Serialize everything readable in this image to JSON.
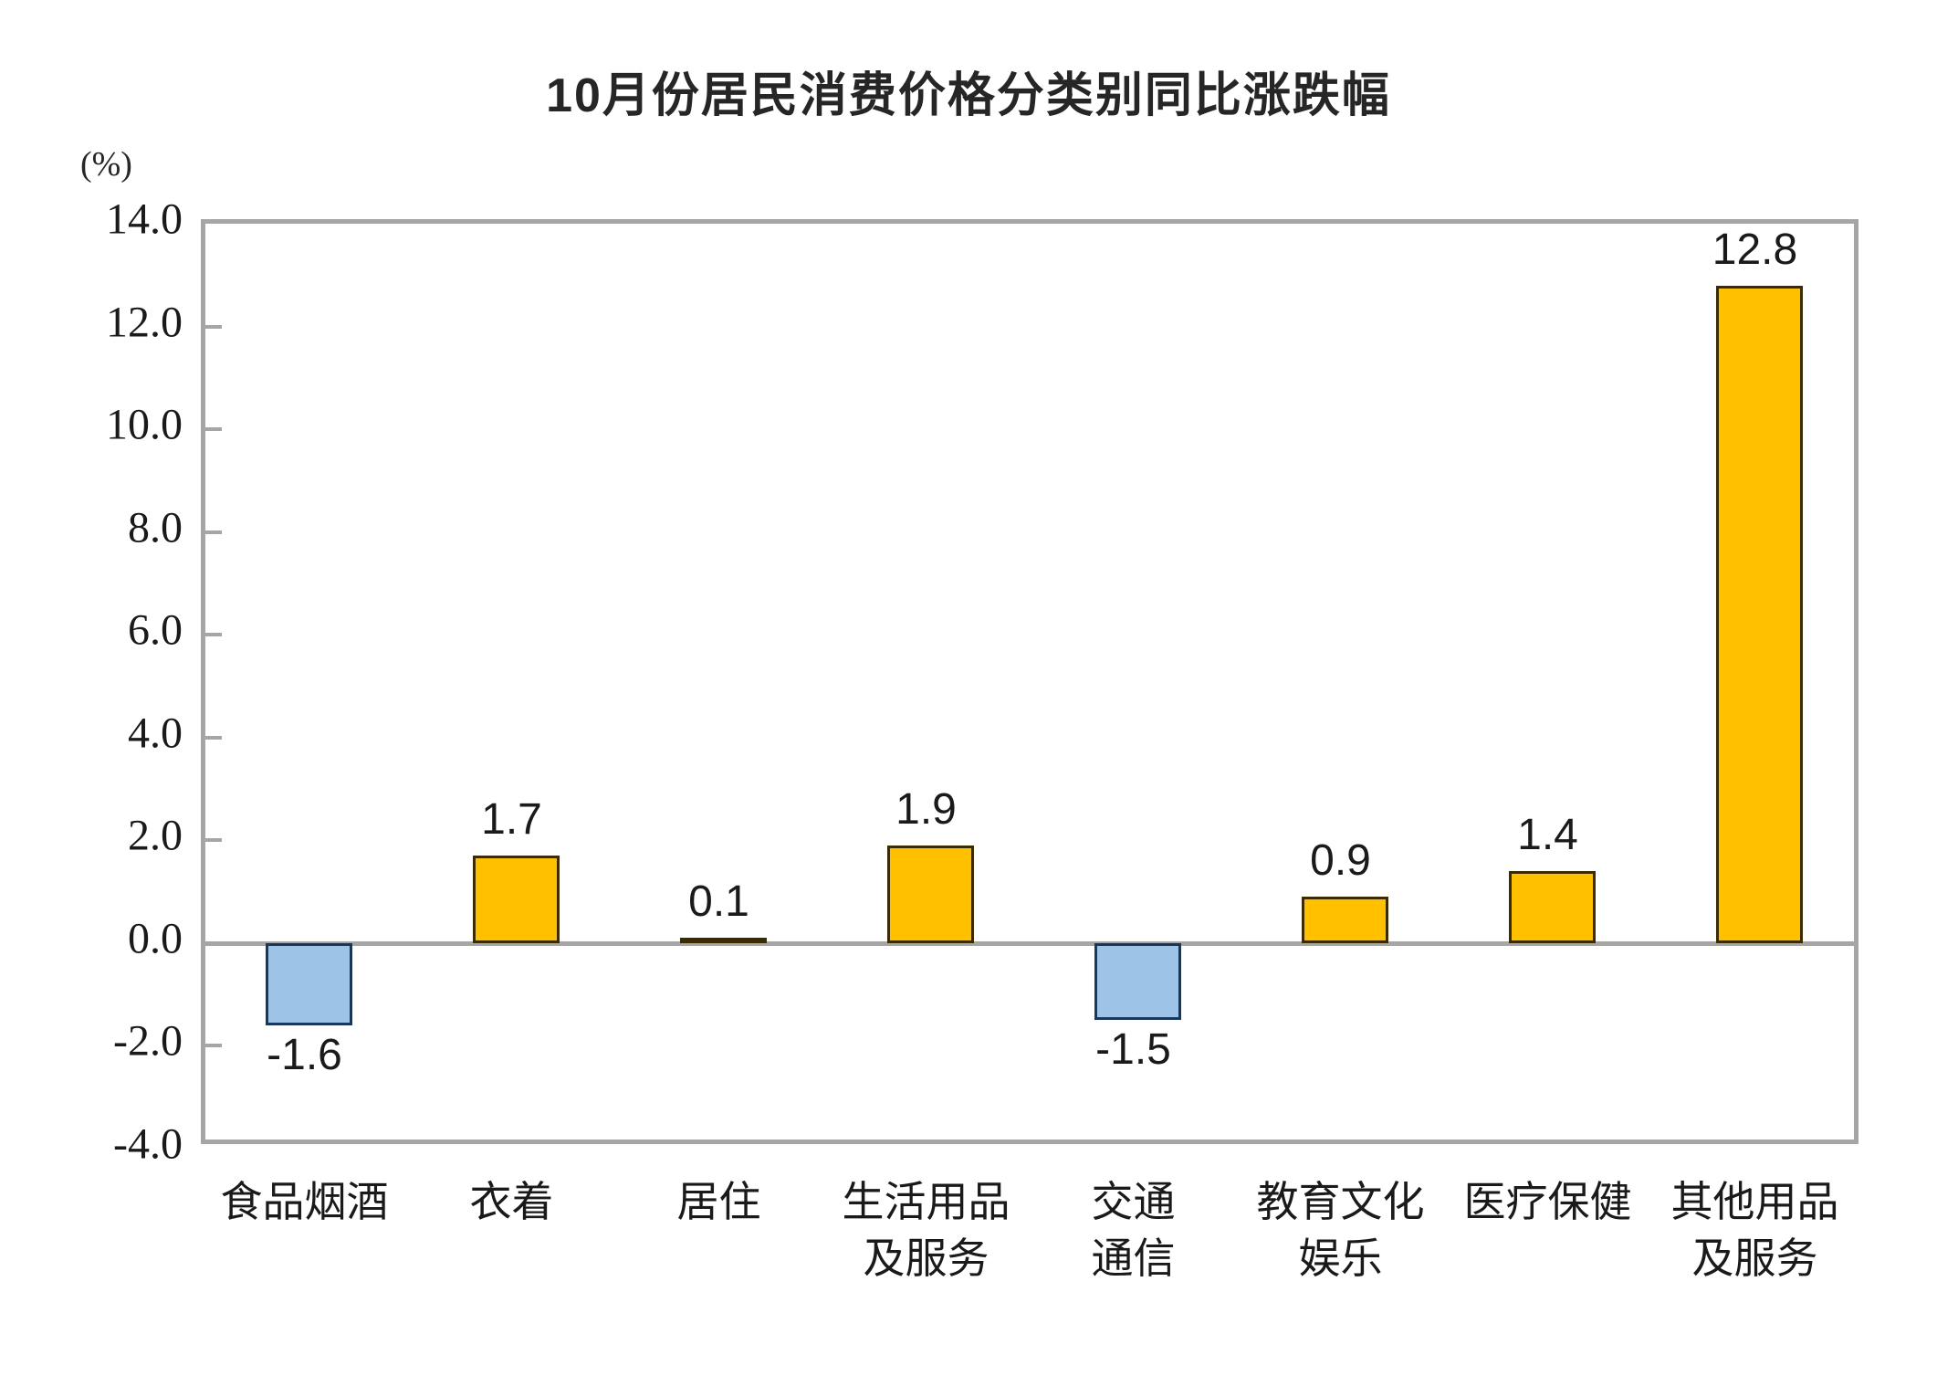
{
  "title": "10月份居民消费价格分类别同比涨跌幅",
  "unit_label": "(%)",
  "chart_data": {
    "type": "bar",
    "title": "10月份居民消费价格分类别同比涨跌幅",
    "unit": "(%)",
    "categories": [
      "食品烟酒",
      "衣着",
      "居住",
      "生活用品及服务",
      "交通通信",
      "教育文化娱乐",
      "医疗保健",
      "其他用品及服务"
    ],
    "category_display_lines": [
      "食品烟酒",
      "衣着",
      "居住",
      "生活用品\n及服务",
      "交通\n通信",
      "教育文化\n娱乐",
      "医疗保健",
      "其他用品\n及服务"
    ],
    "values": [
      -1.6,
      1.7,
      0.1,
      1.9,
      -1.5,
      0.9,
      1.4,
      12.8
    ],
    "value_labels": [
      "-1.6",
      "1.7",
      "0.1",
      "1.9",
      "-1.5",
      "0.9",
      "1.4",
      "12.8"
    ],
    "xlabel": "",
    "ylabel": "(%)",
    "ylim": [
      -4.0,
      14.0
    ],
    "ytick_step": 2.0,
    "yticks": [
      "14.0",
      "12.0",
      "10.0",
      "8.0",
      "6.0",
      "4.0",
      "2.0",
      "0.0",
      "-2.0",
      "-4.0"
    ],
    "ytick_values": [
      14.0,
      12.0,
      10.0,
      8.0,
      6.0,
      4.0,
      2.0,
      0.0,
      -2.0,
      -4.0
    ],
    "grid": "zero-line-only",
    "legend_position": "none",
    "colors": {
      "bar_positive": "#ffc000",
      "bar_positive_border": "#3a2c00",
      "bar_negative": "#9dc3e6",
      "bar_negative_border": "#17375e",
      "axis_frame": "#a6a6a6",
      "text": "#1a1a1a",
      "background": "#ffffff"
    }
  }
}
